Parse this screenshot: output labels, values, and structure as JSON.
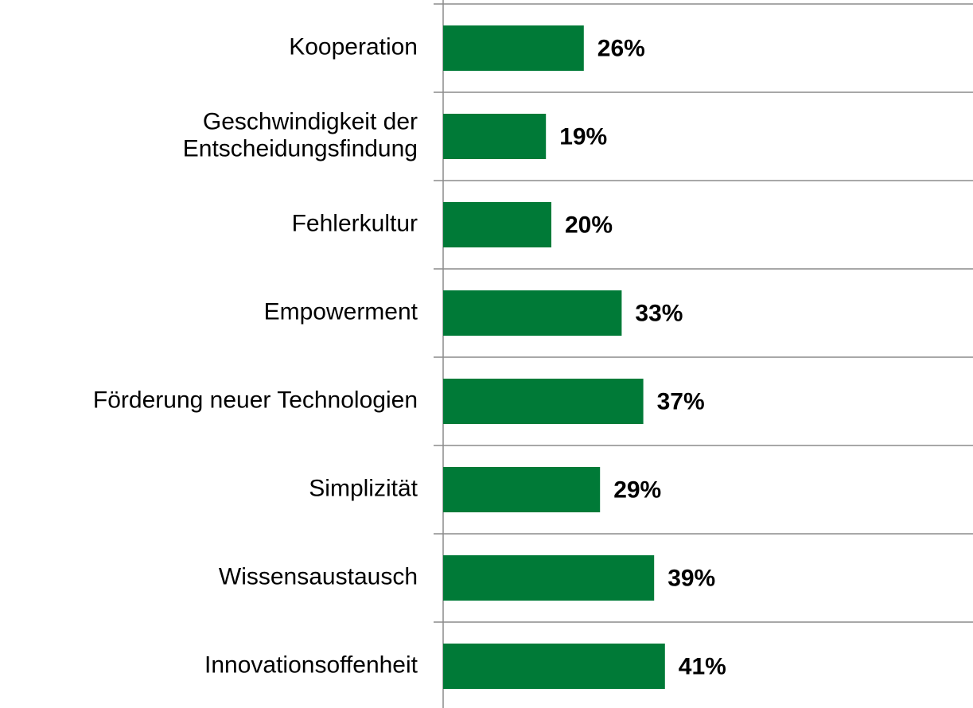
{
  "chart_data": {
    "type": "bar",
    "orientation": "horizontal",
    "categories": [
      "Kooperation",
      "Geschwindigkeit der\nEntscheidungsfindung",
      "Fehlerkultur",
      "Empowerment",
      "Förderung neuer Technologien",
      "Simplizität",
      "Wissensaustausch",
      "Innovationsoffenheit"
    ],
    "values": [
      26,
      19,
      20,
      33,
      37,
      29,
      39,
      41
    ],
    "value_labels": [
      "26%",
      "19%",
      "20%",
      "33%",
      "37%",
      "29%",
      "39%",
      "41%"
    ],
    "color": "#007a37",
    "xlim": [
      0,
      95
    ]
  }
}
